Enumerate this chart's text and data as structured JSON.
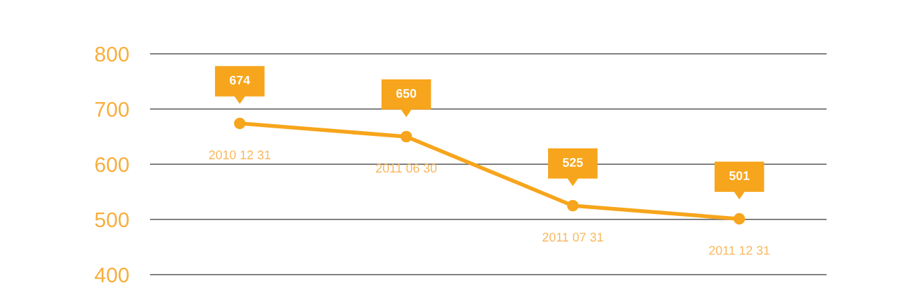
{
  "chart_data": {
    "type": "line",
    "categories": [
      "2010 12 31",
      "2011 06 30",
      "2011 07 31",
      "2011 12 31"
    ],
    "series": [
      {
        "color": "#f7a51c",
        "values": [
          674,
          650,
          525,
          501
        ]
      }
    ],
    "ylim": [
      400,
      800
    ],
    "yticks": [
      400,
      500,
      600,
      700,
      800
    ],
    "grid": "y",
    "marker": "circle",
    "line_style": "solid",
    "data_labels": true
  }
}
